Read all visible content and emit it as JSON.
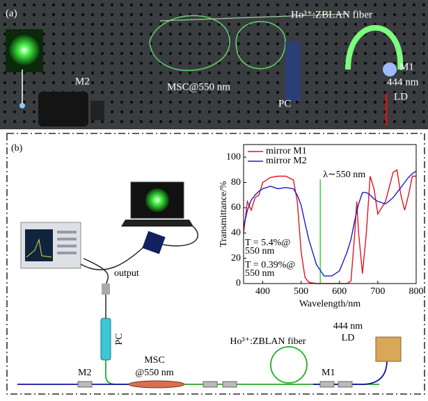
{
  "panel_a": {
    "label": "(a)",
    "fiber_label": "Ho³⁺:ZBLAN fiber",
    "m2": "M2",
    "msc": "MSC@550 nm",
    "pc": "PC",
    "m1": "M1",
    "ld_wavelength": "444 nm",
    "ld": "LD"
  },
  "panel_b": {
    "label": "(b)",
    "output": "output",
    "pc": "PC",
    "msc": "MSC",
    "msc_wavelength": "@550 nm",
    "fiber_label": "Ho³⁺:ZBLAN fiber",
    "m2": "M2",
    "m1": "M1",
    "ld_wavelength": "444 nm",
    "ld": "LD"
  },
  "chart_data": {
    "type": "line",
    "x_label": "Wavelength/nm",
    "y_label": "Transmittance/%",
    "x": [
      350,
      360,
      370,
      380,
      390,
      400,
      420,
      440,
      460,
      480,
      490,
      500,
      510,
      520,
      540,
      560,
      580,
      600,
      620,
      630,
      640,
      645,
      650,
      660,
      670,
      680,
      690,
      700,
      720,
      740,
      750,
      760,
      770,
      780,
      790,
      800
    ],
    "series": [
      {
        "name": "mirror M1",
        "color": "#e0141e",
        "values": [
          40,
          65,
          58,
          68,
          70,
          80,
          84,
          85,
          85,
          82,
          65,
          25,
          5,
          1,
          0,
          0,
          0,
          0,
          0,
          2,
          40,
          65,
          40,
          8,
          40,
          85,
          75,
          55,
          65,
          88,
          90,
          70,
          58,
          70,
          85,
          85
        ]
      },
      {
        "name": "mirror M2",
        "color": "#1a1ad0",
        "values": [
          45,
          58,
          66,
          70,
          73,
          75,
          77,
          75,
          76,
          75,
          70,
          62,
          48,
          35,
          15,
          6,
          6,
          10,
          25,
          35,
          50,
          57,
          63,
          72,
          72,
          70,
          67,
          65,
          63,
          68,
          72,
          76,
          80,
          84,
          87,
          89
        ]
      }
    ],
    "xlim": [
      350,
      800
    ],
    "ylim": [
      0,
      110
    ],
    "xticks": [
      400,
      500,
      600,
      700,
      800
    ],
    "yticks": [
      0,
      20,
      40,
      60,
      80,
      100
    ],
    "legend": "upper left",
    "vline": {
      "x": 550,
      "color": "#3ad23a",
      "label": "λ∼550 nm"
    },
    "annotations": [
      "T = 5.4%@",
      "550 nm",
      "T = 0.39%@",
      "550 nm"
    ]
  }
}
